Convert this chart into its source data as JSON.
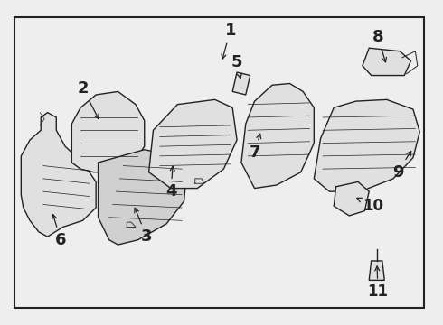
{
  "bg_color": "#eeeeee",
  "line_color": "#222222",
  "face_color": "#e0e0e0",
  "face_color2": "#d0d0d0",
  "lw": 1.0
}
